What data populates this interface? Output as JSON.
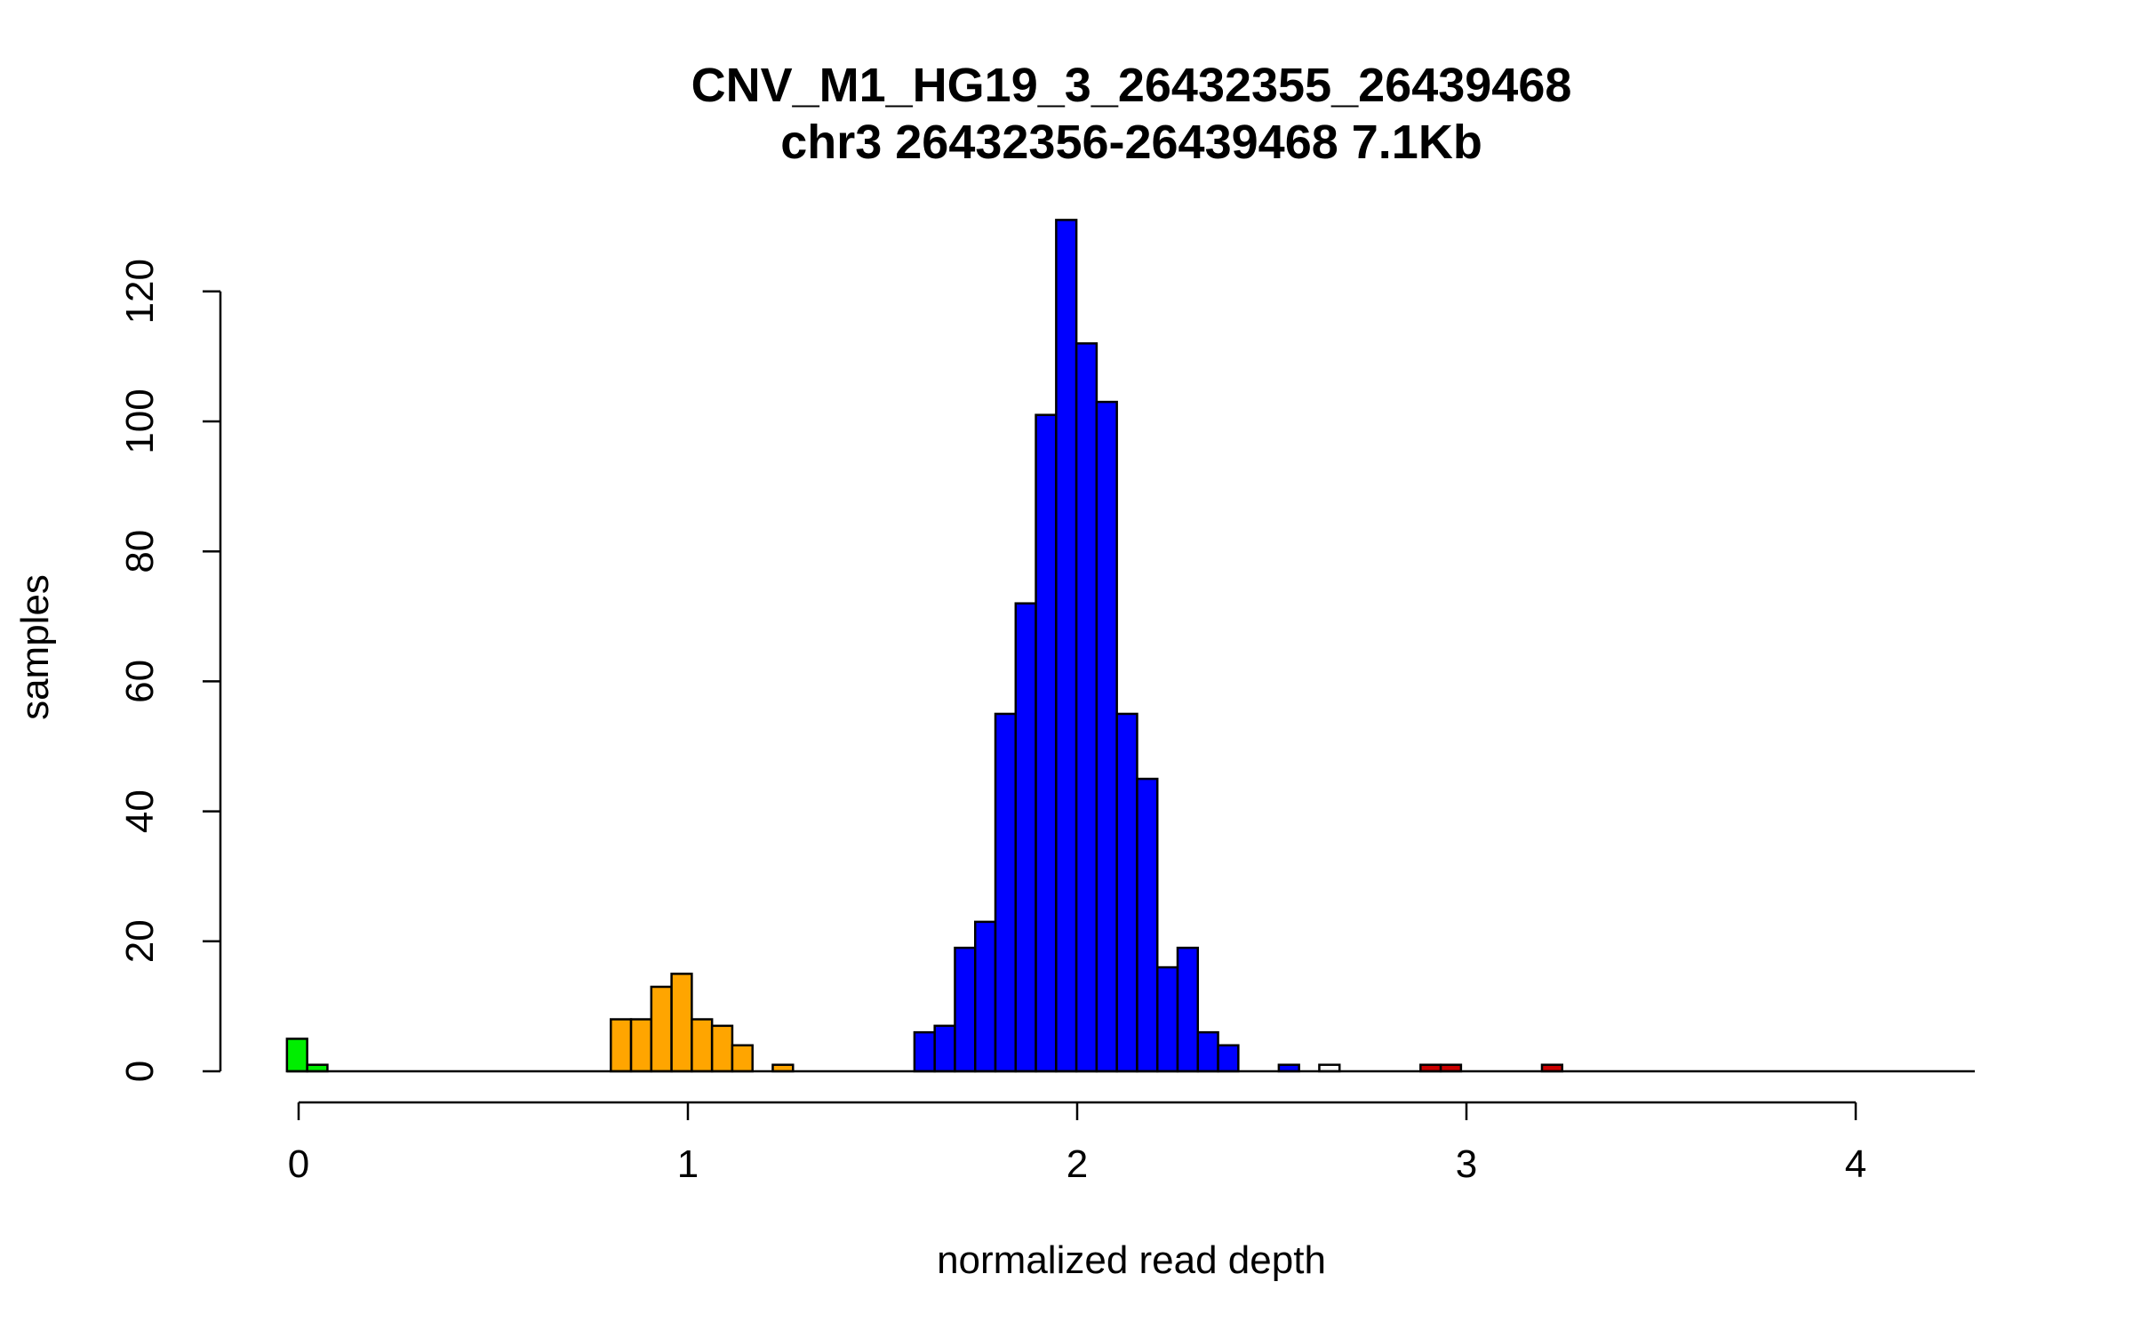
{
  "chart_data": {
    "type": "bar",
    "title": "CNV_M1_HG19_3_26432355_26439468",
    "subtitle": "chr3 26432356-26439468 7.1Kb",
    "xlabel": "normalized read depth",
    "ylabel": "samples",
    "xlim": [
      -0.2,
      4.3
    ],
    "ylim": [
      0,
      131
    ],
    "x_ticks": [
      0,
      1,
      2,
      3,
      4
    ],
    "x_tick_labels": [
      "0",
      "1",
      "2",
      "3",
      "4"
    ],
    "y_ticks": [
      0,
      20,
      40,
      60,
      80,
      100,
      120
    ],
    "y_tick_labels": [
      "0",
      "20",
      "40",
      "60",
      "80",
      "100",
      "120"
    ],
    "bin_width": 0.052,
    "grid": false,
    "bins": [
      {
        "x0": -0.03,
        "count": 5,
        "color": "#00ee00"
      },
      {
        "x0": 0.022,
        "count": 1,
        "color": "#00ee00"
      },
      {
        "x0": 0.074,
        "count": 0,
        "color": "#00ee00"
      },
      {
        "x0": 0.126,
        "count": 0,
        "color": "#ffa500"
      },
      {
        "x0": 0.178,
        "count": 0,
        "color": "#ffa500"
      },
      {
        "x0": 0.23,
        "count": 0,
        "color": "#ffa500"
      },
      {
        "x0": 0.282,
        "count": 0,
        "color": "#ffa500"
      },
      {
        "x0": 0.334,
        "count": 0,
        "color": "#ffa500"
      },
      {
        "x0": 0.386,
        "count": 0,
        "color": "#ffa500"
      },
      {
        "x0": 0.438,
        "count": 0,
        "color": "#ffa500"
      },
      {
        "x0": 0.49,
        "count": 0,
        "color": "#ffa500"
      },
      {
        "x0": 0.542,
        "count": 0,
        "color": "#ffa500"
      },
      {
        "x0": 0.594,
        "count": 0,
        "color": "#ffa500"
      },
      {
        "x0": 0.646,
        "count": 0,
        "color": "#ffa500"
      },
      {
        "x0": 0.698,
        "count": 0,
        "color": "#ffa500"
      },
      {
        "x0": 0.75,
        "count": 0,
        "color": "#ffa500"
      },
      {
        "x0": 0.802,
        "count": 8,
        "color": "#ffa500"
      },
      {
        "x0": 0.854,
        "count": 8,
        "color": "#ffa500"
      },
      {
        "x0": 0.906,
        "count": 13,
        "color": "#ffa500"
      },
      {
        "x0": 0.958,
        "count": 15,
        "color": "#ffa500"
      },
      {
        "x0": 1.01,
        "count": 8,
        "color": "#ffa500"
      },
      {
        "x0": 1.062,
        "count": 7,
        "color": "#ffa500"
      },
      {
        "x0": 1.114,
        "count": 4,
        "color": "#ffa500"
      },
      {
        "x0": 1.166,
        "count": 0,
        "color": "#ffa500"
      },
      {
        "x0": 1.218,
        "count": 1,
        "color": "#ffa500"
      },
      {
        "x0": 1.27,
        "count": 0,
        "color": "#ffa500"
      },
      {
        "x0": 1.322,
        "count": 0,
        "color": "#ffa500"
      },
      {
        "x0": 1.374,
        "count": 0,
        "color": "#ffa500"
      },
      {
        "x0": 1.426,
        "count": 0,
        "color": "#ffa500"
      },
      {
        "x0": 1.478,
        "count": 0,
        "color": "#ffa500"
      },
      {
        "x0": 1.53,
        "count": 0,
        "color": "#0000ff"
      },
      {
        "x0": 1.582,
        "count": 6,
        "color": "#0000ff"
      },
      {
        "x0": 1.634,
        "count": 7,
        "color": "#0000ff"
      },
      {
        "x0": 1.686,
        "count": 19,
        "color": "#0000ff"
      },
      {
        "x0": 1.738,
        "count": 23,
        "color": "#0000ff"
      },
      {
        "x0": 1.79,
        "count": 55,
        "color": "#0000ff"
      },
      {
        "x0": 1.842,
        "count": 72,
        "color": "#0000ff"
      },
      {
        "x0": 1.894,
        "count": 101,
        "color": "#0000ff"
      },
      {
        "x0": 1.946,
        "count": 131,
        "color": "#0000ff"
      },
      {
        "x0": 1.998,
        "count": 112,
        "color": "#0000ff"
      },
      {
        "x0": 2.05,
        "count": 103,
        "color": "#0000ff"
      },
      {
        "x0": 2.102,
        "count": 55,
        "color": "#0000ff"
      },
      {
        "x0": 2.154,
        "count": 45,
        "color": "#0000ff"
      },
      {
        "x0": 2.206,
        "count": 16,
        "color": "#0000ff"
      },
      {
        "x0": 2.258,
        "count": 19,
        "color": "#0000ff"
      },
      {
        "x0": 2.31,
        "count": 6,
        "color": "#0000ff"
      },
      {
        "x0": 2.362,
        "count": 4,
        "color": "#0000ff"
      },
      {
        "x0": 2.414,
        "count": 0,
        "color": "#0000ff"
      },
      {
        "x0": 2.466,
        "count": 0,
        "color": "#0000ff"
      },
      {
        "x0": 2.518,
        "count": 1,
        "color": "#0000ff"
      },
      {
        "x0": 2.57,
        "count": 0,
        "color": "#ffffff"
      },
      {
        "x0": 2.622,
        "count": 1,
        "color": "#ffffff"
      },
      {
        "x0": 2.674,
        "count": 0,
        "color": "#ffffff"
      },
      {
        "x0": 2.726,
        "count": 0,
        "color": "#ffffff"
      },
      {
        "x0": 2.778,
        "count": 0,
        "color": "#ffffff"
      },
      {
        "x0": 2.83,
        "count": 0,
        "color": "#cc0000"
      },
      {
        "x0": 2.882,
        "count": 1,
        "color": "#cc0000"
      },
      {
        "x0": 2.934,
        "count": 1,
        "color": "#cc0000"
      },
      {
        "x0": 2.986,
        "count": 0,
        "color": "#cc0000"
      },
      {
        "x0": 3.038,
        "count": 0,
        "color": "#cc0000"
      },
      {
        "x0": 3.09,
        "count": 0,
        "color": "#cc0000"
      },
      {
        "x0": 3.142,
        "count": 0,
        "color": "#cc0000"
      },
      {
        "x0": 3.194,
        "count": 1,
        "color": "#cc0000"
      },
      {
        "x0": 3.246,
        "count": 0,
        "color": "#cc0000"
      },
      {
        "x0": 3.298,
        "count": 0,
        "color": "#cc0000"
      },
      {
        "x0": 3.35,
        "count": 0,
        "color": "#cc0000"
      },
      {
        "x0": 3.402,
        "count": 0,
        "color": "#cc0000"
      },
      {
        "x0": 3.454,
        "count": 0,
        "color": "#cc0000"
      },
      {
        "x0": 3.506,
        "count": 0,
        "color": "#cc0000"
      },
      {
        "x0": 3.558,
        "count": 0,
        "color": "#cc0000"
      },
      {
        "x0": 3.61,
        "count": 0,
        "color": "#cc0000"
      },
      {
        "x0": 3.662,
        "count": 0,
        "color": "#cc0000"
      },
      {
        "x0": 3.714,
        "count": 0,
        "color": "#cc0000"
      },
      {
        "x0": 3.766,
        "count": 0,
        "color": "#cc0000"
      },
      {
        "x0": 3.818,
        "count": 0,
        "color": "#cc0000"
      },
      {
        "x0": 3.87,
        "count": 0,
        "color": "#cc0000"
      },
      {
        "x0": 3.922,
        "count": 0,
        "color": "#cc0000"
      },
      {
        "x0": 3.974,
        "count": 0,
        "color": "#cc0000"
      },
      {
        "x0": 4.026,
        "count": 0,
        "color": "#cc0000"
      },
      {
        "x0": 4.078,
        "count": 0,
        "color": "#cc0000"
      },
      {
        "x0": 4.13,
        "count": 0,
        "color": "#cc0000"
      },
      {
        "x0": 4.182,
        "count": 0,
        "color": "#cc0000"
      },
      {
        "x0": 4.234,
        "count": 0,
        "color": "#cc0000"
      }
    ]
  }
}
